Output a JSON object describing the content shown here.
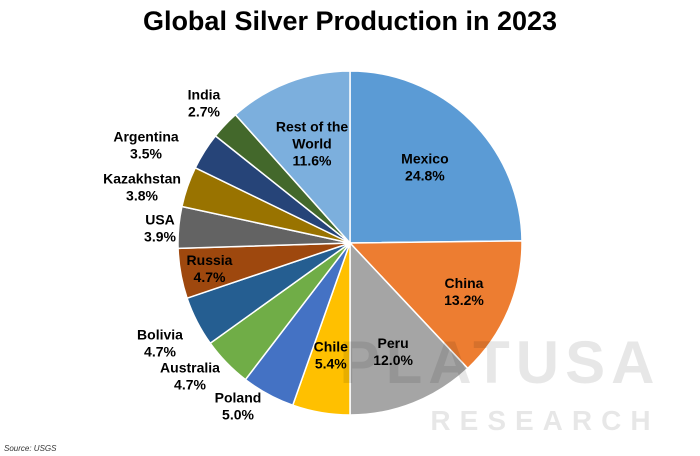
{
  "chart_data": {
    "type": "pie",
    "title": "Global Silver Production in 2023",
    "slices": [
      {
        "label": "Mexico",
        "value": 24.8,
        "display": "24.8%",
        "color": "#5B9BD5"
      },
      {
        "label": "China",
        "value": 13.2,
        "display": "13.2%",
        "color": "#ED7D31"
      },
      {
        "label": "Peru",
        "value": 12.0,
        "display": "12.0%",
        "color": "#A5A5A5"
      },
      {
        "label": "Chile",
        "value": 5.4,
        "display": "5.4%",
        "color": "#FFC000"
      },
      {
        "label": "Poland",
        "value": 5.0,
        "display": "5.0%",
        "color": "#4472C4"
      },
      {
        "label": "Australia",
        "value": 4.7,
        "display": "4.7%",
        "color": "#70AD47"
      },
      {
        "label": "Bolivia",
        "value": 4.7,
        "display": "4.7%",
        "color": "#255E91"
      },
      {
        "label": "Russia",
        "value": 4.7,
        "display": "4.7%",
        "color": "#9E480E"
      },
      {
        "label": "USA",
        "value": 3.9,
        "display": "3.9%",
        "color": "#636363"
      },
      {
        "label": "Kazakhstan",
        "value": 3.8,
        "display": "3.8%",
        "color": "#997300"
      },
      {
        "label": "Argentina",
        "value": 3.5,
        "display": "3.5%",
        "color": "#264478"
      },
      {
        "label": "India",
        "value": 2.7,
        "display": "2.7%",
        "color": "#43682B"
      },
      {
        "label": "Rest of the World",
        "value": 11.6,
        "display": "11.6%",
        "color": "#7CAFDD"
      }
    ],
    "legend": "none"
  },
  "source": "Source: USGS",
  "watermark": {
    "line1": "PLATUSA",
    "line2": "RESEARCH"
  }
}
